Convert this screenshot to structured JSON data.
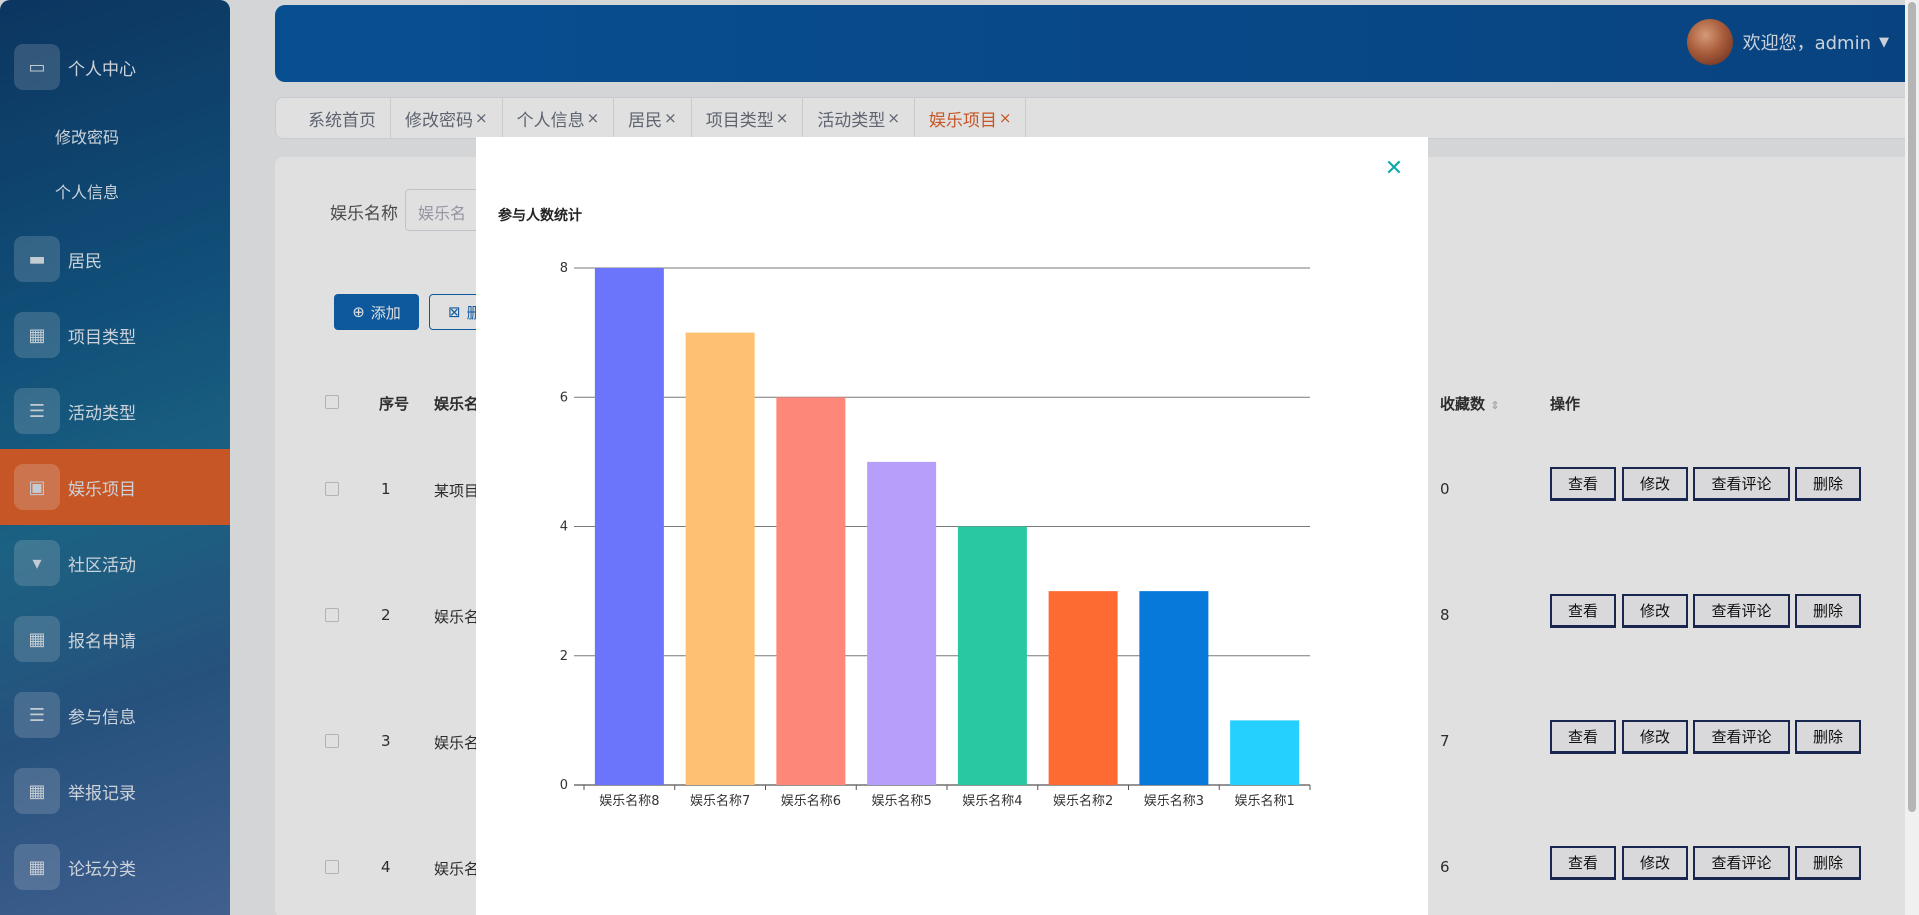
{
  "sidebar": {
    "items": [
      {
        "label": "个人中心",
        "icon": "profile-icon"
      },
      {
        "label": "修改密码"
      },
      {
        "label": "个人信息"
      },
      {
        "label": "居民",
        "icon": "monitor-icon"
      },
      {
        "label": "项目类型",
        "icon": "grid-icon"
      },
      {
        "label": "活动类型",
        "icon": "list-icon"
      },
      {
        "label": "娱乐项目",
        "icon": "clipboard-icon"
      },
      {
        "label": "社区活动",
        "icon": "pin-icon"
      },
      {
        "label": "报名申请",
        "icon": "grid-icon"
      },
      {
        "label": "参与信息",
        "icon": "list-icon"
      },
      {
        "label": "举报记录",
        "icon": "grid-icon"
      },
      {
        "label": "论坛分类",
        "icon": "grid-icon"
      }
    ]
  },
  "header": {
    "welcome": "欢迎您，admin"
  },
  "tabs": [
    {
      "label": "系统首页",
      "closable": false
    },
    {
      "label": "修改密码",
      "closable": true
    },
    {
      "label": "个人信息",
      "closable": true
    },
    {
      "label": "居民",
      "closable": true
    },
    {
      "label": "项目类型",
      "closable": true
    },
    {
      "label": "活动类型",
      "closable": true
    },
    {
      "label": "娱乐项目",
      "closable": true
    }
  ],
  "tab_close_glyph": "×",
  "search": {
    "label": "娱乐名称",
    "placeholder": "娱乐名"
  },
  "toolbar": {
    "add_label": "添加",
    "delete_label": "删"
  },
  "table": {
    "headers": {
      "index": "序号",
      "name": "娱乐名",
      "favorites": "收藏数",
      "ops": "操作"
    },
    "rows": [
      {
        "index": "1",
        "name": "某项目",
        "favorites": "0"
      },
      {
        "index": "2",
        "name": "娱乐名",
        "favorites": "8"
      },
      {
        "index": "3",
        "name": "娱乐名",
        "favorites": "7"
      },
      {
        "index": "4",
        "name": "娱乐名",
        "favorites": "6"
      }
    ],
    "op_labels": [
      "查看",
      "修改",
      "查看评论",
      "删除"
    ]
  },
  "modal": {
    "close_glyph": "✕"
  },
  "chart_data": {
    "type": "bar",
    "title": "参与人数统计",
    "categories": [
      "娱乐名称8",
      "娱乐名称7",
      "娱乐名称6",
      "娱乐名称5",
      "娱乐名称4",
      "娱乐名称2",
      "娱乐名称3",
      "娱乐名称1"
    ],
    "values": [
      8,
      7,
      6,
      5,
      4,
      3,
      3,
      1
    ],
    "colors": [
      "#6b75fb",
      "#fec171",
      "#fd8779",
      "#b59ffb",
      "#28c8a2",
      "#fe6b32",
      "#0779db",
      "#25d0fe"
    ],
    "ylim": [
      0,
      8
    ],
    "yticks": [
      0,
      2,
      4,
      6,
      8
    ],
    "grid": true
  }
}
